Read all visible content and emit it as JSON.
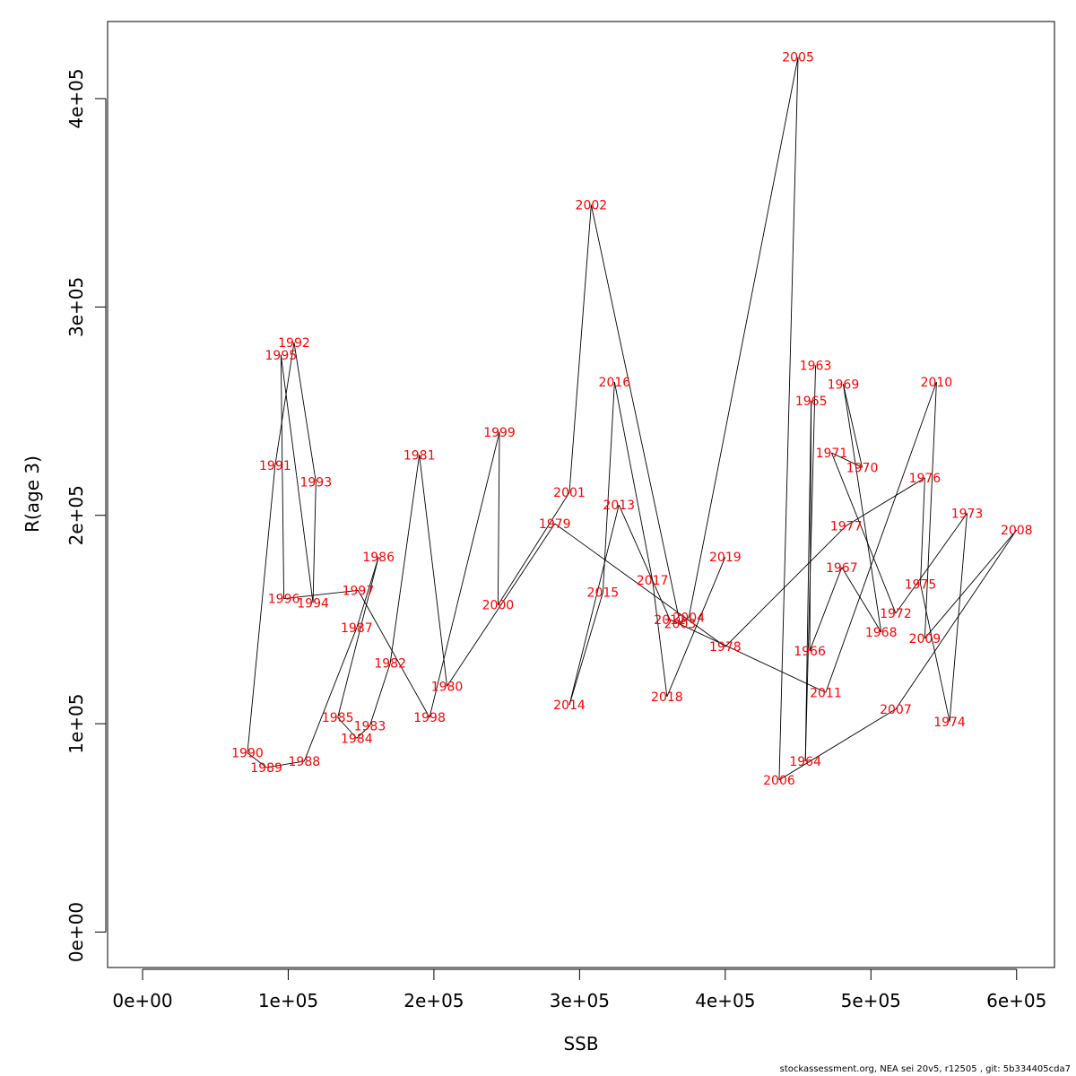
{
  "chart_data": {
    "type": "line",
    "xlabel": "SSB",
    "ylabel": "R(age 3)",
    "xlim": [
      -24000,
      626000
    ],
    "ylim": [
      -17000,
      437000
    ],
    "xticks": [
      0,
      100000,
      200000,
      300000,
      400000,
      500000,
      600000
    ],
    "xtick_labels": [
      "0e+00",
      "1e+05",
      "2e+05",
      "3e+05",
      "4e+05",
      "5e+05",
      "6e+05"
    ],
    "yticks": [
      0,
      100000,
      200000,
      300000,
      400000
    ],
    "ytick_labels": [
      "0e+00",
      "1e+05",
      "2e+05",
      "3e+05",
      "4e+05"
    ],
    "line_color": "#000000",
    "label_color": "#ff0000",
    "points": [
      {
        "year": "1963",
        "x": 462000,
        "y": 272000
      },
      {
        "year": "1964",
        "x": 455000,
        "y": 82000
      },
      {
        "year": "1965",
        "x": 459000,
        "y": 255000
      },
      {
        "year": "1966",
        "x": 458000,
        "y": 135000
      },
      {
        "year": "1967",
        "x": 480000,
        "y": 175000
      },
      {
        "year": "1968",
        "x": 507000,
        "y": 144000
      },
      {
        "year": "1969",
        "x": 481000,
        "y": 263000
      },
      {
        "year": "1970",
        "x": 494000,
        "y": 223000
      },
      {
        "year": "1971",
        "x": 473000,
        "y": 230000
      },
      {
        "year": "1972",
        "x": 517000,
        "y": 153000
      },
      {
        "year": "1973",
        "x": 566000,
        "y": 201000
      },
      {
        "year": "1974",
        "x": 554000,
        "y": 101000
      },
      {
        "year": "1975",
        "x": 534000,
        "y": 167000
      },
      {
        "year": "1976",
        "x": 537000,
        "y": 218000
      },
      {
        "year": "1977",
        "x": 483000,
        "y": 195000
      },
      {
        "year": "1978",
        "x": 400000,
        "y": 137000
      },
      {
        "year": "1979",
        "x": 283000,
        "y": 196000
      },
      {
        "year": "1980",
        "x": 209000,
        "y": 118000
      },
      {
        "year": "1981",
        "x": 190000,
        "y": 229000
      },
      {
        "year": "1982",
        "x": 170000,
        "y": 129000
      },
      {
        "year": "1983",
        "x": 156000,
        "y": 99000
      },
      {
        "year": "1984",
        "x": 147000,
        "y": 93000
      },
      {
        "year": "1985",
        "x": 134000,
        "y": 103000
      },
      {
        "year": "1986",
        "x": 162000,
        "y": 180000
      },
      {
        "year": "1987",
        "x": 147000,
        "y": 146000
      },
      {
        "year": "1988",
        "x": 111000,
        "y": 82000
      },
      {
        "year": "1989",
        "x": 85000,
        "y": 79000
      },
      {
        "year": "1990",
        "x": 72000,
        "y": 86000
      },
      {
        "year": "1991",
        "x": 91000,
        "y": 224000
      },
      {
        "year": "1992",
        "x": 104000,
        "y": 283000
      },
      {
        "year": "1993",
        "x": 119000,
        "y": 216000
      },
      {
        "year": "1994",
        "x": 117000,
        "y": 158000
      },
      {
        "year": "1995",
        "x": 95000,
        "y": 277000
      },
      {
        "year": "1996",
        "x": 97000,
        "y": 160000
      },
      {
        "year": "1997",
        "x": 148000,
        "y": 164000
      },
      {
        "year": "1998",
        "x": 197000,
        "y": 103000
      },
      {
        "year": "1999",
        "x": 245000,
        "y": 240000
      },
      {
        "year": "2000",
        "x": 244000,
        "y": 157000
      },
      {
        "year": "2001",
        "x": 293000,
        "y": 211000
      },
      {
        "year": "2002",
        "x": 308000,
        "y": 349000
      },
      {
        "year": "2003",
        "x": 369000,
        "y": 148000
      },
      {
        "year": "2004",
        "x": 375000,
        "y": 151000
      },
      {
        "year": "2005",
        "x": 450000,
        "y": 420000
      },
      {
        "year": "2006",
        "x": 437000,
        "y": 73000
      },
      {
        "year": "2007",
        "x": 517000,
        "y": 107000
      },
      {
        "year": "2008",
        "x": 600000,
        "y": 193000
      },
      {
        "year": "2009",
        "x": 537000,
        "y": 141000
      },
      {
        "year": "2010",
        "x": 545000,
        "y": 264000
      },
      {
        "year": "2011",
        "x": 469000,
        "y": 115000
      },
      {
        "year": "2012",
        "x": 362000,
        "y": 150000
      },
      {
        "year": "2013",
        "x": 327000,
        "y": 205000
      },
      {
        "year": "2014",
        "x": 293000,
        "y": 109000
      },
      {
        "year": "2015",
        "x": 316000,
        "y": 163000
      },
      {
        "year": "2016",
        "x": 324000,
        "y": 264000
      },
      {
        "year": "2017",
        "x": 350000,
        "y": 169000
      },
      {
        "year": "2018",
        "x": 360000,
        "y": 113000
      },
      {
        "year": "2019",
        "x": 400000,
        "y": 180000
      }
    ]
  },
  "footer": "stockassessment.org, NEA  sei  20v5, r12505 , git: 5b334405cda7"
}
